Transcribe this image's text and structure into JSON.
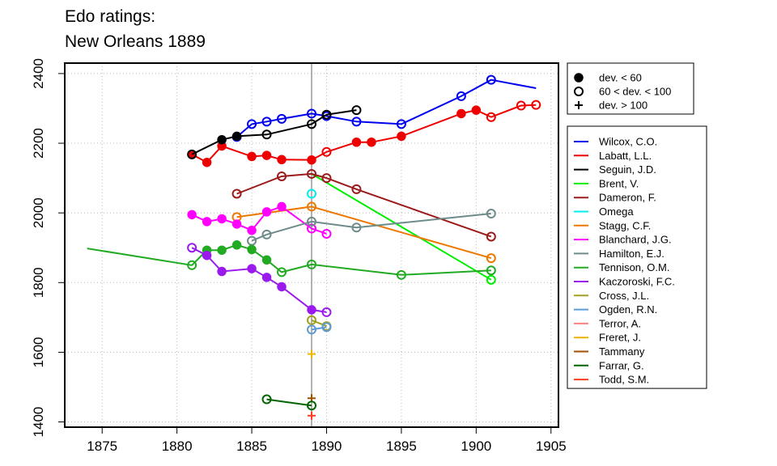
{
  "chart_data": {
    "type": "line",
    "title_lines": [
      "Edo ratings:",
      "New Orleans 1889"
    ],
    "xlabel": "",
    "ylabel": "",
    "xlim": [
      1872.5,
      1905.5
    ],
    "ylim": [
      1385,
      2430
    ],
    "x_ticks": [
      1875,
      1880,
      1885,
      1890,
      1895,
      1900,
      1905
    ],
    "y_ticks": [
      1400,
      1600,
      1800,
      2000,
      2200,
      2400
    ],
    "grid": true,
    "reference_line_x": 1889,
    "reference_line_color": "#999999",
    "marker_legend": [
      {
        "marker": "filled",
        "label": "dev. < 60"
      },
      {
        "marker": "open",
        "label": "60 < dev. < 100"
      },
      {
        "marker": "plus",
        "label": "dev. > 100"
      }
    ],
    "legend_position": "right",
    "series": [
      {
        "name": "Wilcox, C.O.",
        "color": "#0000ee",
        "points": [
          [
            1884,
            2218,
            "open"
          ],
          [
            1885,
            2255,
            "open"
          ],
          [
            1886,
            2262,
            "open"
          ],
          [
            1887,
            2270,
            "open"
          ],
          [
            1889,
            2285,
            "open"
          ],
          [
            1890,
            2278,
            "open"
          ],
          [
            1892,
            2262,
            "open"
          ],
          [
            1895,
            2255,
            "open"
          ],
          [
            1899,
            2335,
            "open"
          ],
          [
            1901,
            2382,
            "open"
          ],
          [
            1904,
            2358,
            "none"
          ]
        ]
      },
      {
        "name": "Labatt, L.L.",
        "color": "#ee0000",
        "points": [
          [
            1881,
            2168,
            "filled"
          ],
          [
            1882,
            2145,
            "filled"
          ],
          [
            1883,
            2192,
            "filled"
          ],
          [
            1885,
            2162,
            "filled"
          ],
          [
            1886,
            2165,
            "filled"
          ],
          [
            1887,
            2153,
            "filled"
          ],
          [
            1889,
            2152,
            "filled"
          ],
          [
            1890,
            2175,
            "open"
          ],
          [
            1892,
            2203,
            "filled"
          ],
          [
            1893,
            2203,
            "filled"
          ],
          [
            1895,
            2220,
            "filled"
          ],
          [
            1899,
            2285,
            "filled"
          ],
          [
            1900,
            2295,
            "filled"
          ],
          [
            1901,
            2275,
            "open"
          ],
          [
            1903,
            2308,
            "open"
          ],
          [
            1904,
            2310,
            "open"
          ]
        ]
      },
      {
        "name": "Seguin, J.D.",
        "color": "#000000",
        "points": [
          [
            1881,
            2168,
            "open"
          ],
          [
            1883,
            2210,
            "filled"
          ],
          [
            1884,
            2220,
            "filled"
          ],
          [
            1886,
            2225,
            "open"
          ],
          [
            1889,
            2255,
            "open"
          ],
          [
            1890,
            2282,
            "open"
          ],
          [
            1892,
            2295,
            "open"
          ]
        ]
      },
      {
        "name": "Brent, V.",
        "color": "#00ee00",
        "points": [
          [
            1889,
            2112,
            "none"
          ],
          [
            1901,
            1808,
            "open"
          ]
        ]
      },
      {
        "name": "Dameron, F.",
        "color": "#9b1b1b",
        "points": [
          [
            1884,
            2055,
            "open"
          ],
          [
            1887,
            2105,
            "open"
          ],
          [
            1889,
            2112,
            "open"
          ],
          [
            1890,
            2100,
            "open"
          ],
          [
            1892,
            2068,
            "open"
          ],
          [
            1901,
            1932,
            "open"
          ]
        ]
      },
      {
        "name": "Omega",
        "color": "#00eeee",
        "points": [
          [
            1889,
            2055,
            "open"
          ]
        ]
      },
      {
        "name": "Stagg, C.F.",
        "color": "#ee7700",
        "points": [
          [
            1884,
            1988,
            "open"
          ],
          [
            1889,
            2018,
            "open"
          ],
          [
            1901,
            1870,
            "open"
          ]
        ]
      },
      {
        "name": "Blanchard, J.G.",
        "color": "#ff00ff",
        "points": [
          [
            1881,
            1995,
            "filled"
          ],
          [
            1882,
            1975,
            "filled"
          ],
          [
            1883,
            1983,
            "filled"
          ],
          [
            1884,
            1968,
            "filled"
          ],
          [
            1885,
            1950,
            "filled"
          ],
          [
            1886,
            2003,
            "filled"
          ],
          [
            1887,
            2018,
            "filled"
          ],
          [
            1889,
            1955,
            "open"
          ],
          [
            1890,
            1940,
            "open"
          ]
        ]
      },
      {
        "name": "Hamilton, E.J.",
        "color": "#6e8b8b",
        "points": [
          [
            1885,
            1920,
            "open"
          ],
          [
            1886,
            1938,
            "open"
          ],
          [
            1889,
            1975,
            "open"
          ],
          [
            1892,
            1958,
            "open"
          ],
          [
            1901,
            1998,
            "open"
          ]
        ]
      },
      {
        "name": "Tennison, O.M.",
        "color": "#22aa22",
        "points": [
          [
            1874,
            1898,
            "none"
          ],
          [
            1881,
            1850,
            "open"
          ],
          [
            1882,
            1893,
            "filled"
          ],
          [
            1883,
            1893,
            "filled"
          ],
          [
            1884,
            1908,
            "filled"
          ],
          [
            1885,
            1895,
            "filled"
          ],
          [
            1886,
            1865,
            "filled"
          ],
          [
            1887,
            1830,
            "open"
          ],
          [
            1889,
            1852,
            "open"
          ],
          [
            1895,
            1822,
            "open"
          ],
          [
            1901,
            1835,
            "open"
          ]
        ]
      },
      {
        "name": "Kaczoroski, F.C.",
        "color": "#9a1aee",
        "points": [
          [
            1881,
            1900,
            "open"
          ],
          [
            1882,
            1878,
            "filled"
          ],
          [
            1883,
            1832,
            "filled"
          ],
          [
            1885,
            1840,
            "filled"
          ],
          [
            1886,
            1815,
            "filled"
          ],
          [
            1887,
            1788,
            "filled"
          ],
          [
            1889,
            1722,
            "filled"
          ],
          [
            1890,
            1715,
            "open"
          ]
        ]
      },
      {
        "name": "Cross, J.L.",
        "color": "#a0a020",
        "points": [
          [
            1889,
            1692,
            "open"
          ],
          [
            1890,
            1675,
            "open"
          ]
        ]
      },
      {
        "name": "Ogden, R.N.",
        "color": "#5c9bd6",
        "points": [
          [
            1889,
            1665,
            "open"
          ],
          [
            1890,
            1672,
            "open"
          ]
        ]
      },
      {
        "name": "Terror, A.",
        "color": "#ff8080",
        "points": []
      },
      {
        "name": "Freret, J.",
        "color": "#f0b400",
        "points": [
          [
            1889,
            1595,
            "plus"
          ]
        ]
      },
      {
        "name": "Tammany",
        "color": "#a05000",
        "points": [
          [
            1889,
            1468,
            "plus"
          ]
        ]
      },
      {
        "name": "Farrar, G.",
        "color": "#006400",
        "points": [
          [
            1886,
            1465,
            "open"
          ],
          [
            1889,
            1447,
            "open"
          ]
        ]
      },
      {
        "name": "Todd, S.M.",
        "color": "#ff3b1f",
        "points": [
          [
            1889,
            1418,
            "plus"
          ]
        ]
      }
    ]
  }
}
